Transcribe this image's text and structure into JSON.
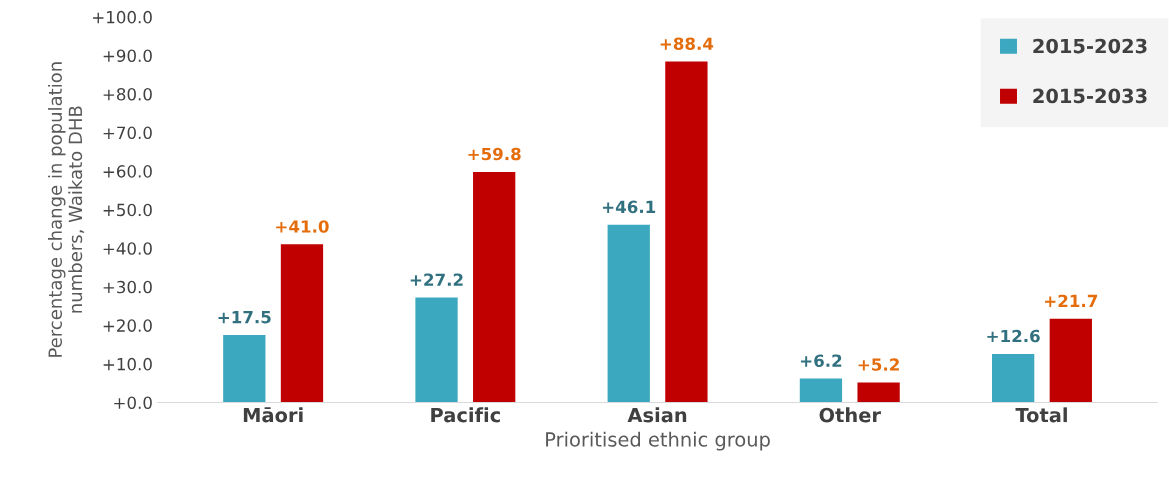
{
  "chart_data": {
    "type": "bar",
    "xlabel": "Prioritised ethnic group",
    "ylabel": "Percentage change in population\nnumbers, Waikato DHB",
    "categories": [
      "Māori",
      "Pacific",
      "Asian",
      "Other",
      "Total"
    ],
    "series": [
      {
        "name": "2015-2023",
        "color": "#3ba8c0",
        "values": [
          17.5,
          27.2,
          46.1,
          6.2,
          12.6
        ],
        "value_labels": [
          "+17.5",
          "+27.2",
          "+46.1",
          "+6.2",
          "+12.6"
        ]
      },
      {
        "name": "2015-2033",
        "color": "#c00000",
        "values": [
          41.0,
          59.8,
          88.4,
          5.2,
          21.7
        ],
        "value_labels": [
          "+41.0",
          "+59.8",
          "+88.4",
          "+5.2",
          "+21.7"
        ]
      }
    ],
    "ylim": [
      0,
      100
    ],
    "yticks": [
      {
        "value": 0,
        "label": "+0.0"
      },
      {
        "value": 10,
        "label": "+10.0"
      },
      {
        "value": 20,
        "label": "+20.0"
      },
      {
        "value": 30,
        "label": "+30.0"
      },
      {
        "value": 40,
        "label": "+40.0"
      },
      {
        "value": 50,
        "label": "+50.0"
      },
      {
        "value": 60,
        "label": "+60.0"
      },
      {
        "value": 70,
        "label": "+70.0"
      },
      {
        "value": 80,
        "label": "+80.0"
      },
      {
        "value": 90,
        "label": "+90.0"
      },
      {
        "value": 100,
        "label": "+100.0"
      }
    ],
    "grid": false,
    "legend": "top right"
  }
}
